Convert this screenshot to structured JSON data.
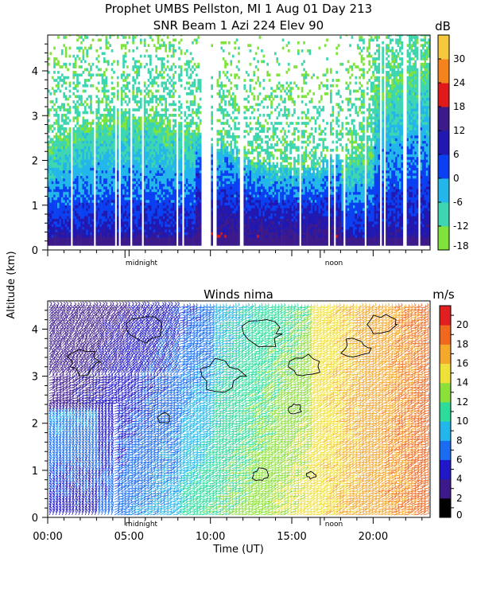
{
  "chart_data": [
    {
      "type": "heatmap",
      "title": "Prophet  UMBS Pellston, MI    1 Aug 01 Day 213",
      "subtitle": "SNR Beam 1 Azi 224 Elev 90",
      "ylabel": "Altitude (km)",
      "ylim": [
        0,
        4.8
      ],
      "yticks": [
        "0",
        "1",
        "2",
        "3",
        "4"
      ],
      "xlim": [
        0,
        23.5
      ],
      "annotations": [
        {
          "text": "midnight",
          "x": 4.75
        },
        {
          "text": "noon",
          "x": 16.75
        }
      ],
      "colorbar": {
        "unit": "dB",
        "range": [
          -18,
          36
        ],
        "ticks": [
          "-18",
          "-12",
          "-6",
          "0",
          "6",
          "12",
          "18",
          "24",
          "30"
        ],
        "colors": [
          "#7fe33c",
          "#3dd6b0",
          "#23b6ea",
          "#0a40f2",
          "#2018b0",
          "#3c1a8c",
          "#e01a1a",
          "#f4831e",
          "#f6c83c"
        ]
      },
      "field": {
        "x_range_hours": [
          0,
          23.5
        ],
        "alt_range_km": [
          0.1,
          4.8
        ],
        "typical_snr_db": {
          "surface_layer": 14,
          "mixed_layer_top": 2.2,
          "upper_clear_air": -14
        }
      }
    },
    {
      "type": "heatmap",
      "title": "Winds nima",
      "ylabel": "Altitude (km)",
      "xlabel": "Time (UT)",
      "ylim": [
        0,
        4.6
      ],
      "yticks": [
        "0",
        "1",
        "2",
        "3",
        "4"
      ],
      "xlim": [
        0,
        23.5
      ],
      "xticks": [
        "00:00",
        "05:00",
        "10:00",
        "15:00",
        "20:00"
      ],
      "xtick_values": [
        0,
        5,
        10,
        15,
        20
      ],
      "annotations": [
        {
          "text": "midnight",
          "x": 4.75
        },
        {
          "text": "noon",
          "x": 16.75
        }
      ],
      "colorbar": {
        "unit": "m/s",
        "range": [
          0,
          22
        ],
        "ticks": [
          "0",
          "2",
          "4",
          "6",
          "8",
          "10",
          "12",
          "14",
          "16",
          "18",
          "20"
        ],
        "colors": [
          "#000000",
          "#3c1a8c",
          "#2018c8",
          "#1a6cf0",
          "#23b6ea",
          "#2edc9a",
          "#8ce03a",
          "#f0e03c",
          "#f6a82c",
          "#f06820",
          "#e02020"
        ]
      },
      "field": {
        "x_range_hours": [
          0,
          23.2
        ],
        "alt_range_km": [
          0.05,
          4.5
        ],
        "speed_ms_min": 2,
        "speed_ms_max": 21
      }
    }
  ]
}
